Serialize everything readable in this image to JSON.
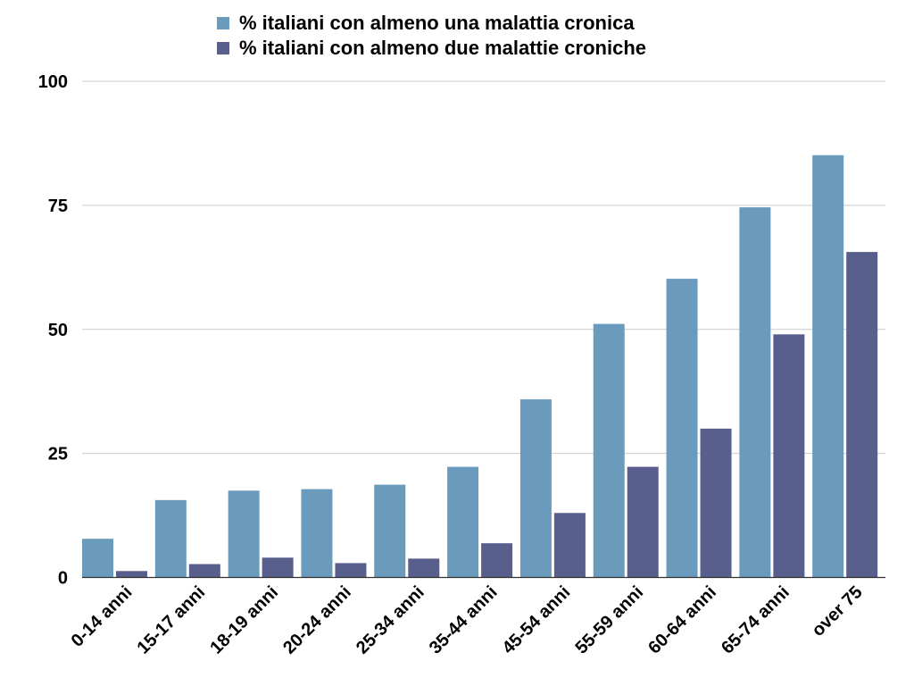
{
  "chart_data": {
    "type": "bar",
    "title": "",
    "xlabel": "",
    "ylabel": "",
    "categories": [
      "0-14 anni",
      "15-17 anni",
      "18-19 anni",
      "20-24 anni",
      "25-34 anni",
      "35-44 anni",
      "45-54 anni",
      "55-59 anni",
      "60-64 anni",
      "65-74 anni",
      "over 75"
    ],
    "series": [
      {
        "name": "% italiani con almeno una malattia cronica",
        "color": "#6a9bbd",
        "values": [
          7.8,
          15.6,
          17.5,
          17.8,
          18.7,
          22.3,
          35.9,
          51.1,
          60.2,
          74.6,
          85.1
        ]
      },
      {
        "name": "% italiani con almeno due malattie croniche",
        "color": "#595f8c",
        "values": [
          1.3,
          2.7,
          4.0,
          2.9,
          3.8,
          6.9,
          13.0,
          22.3,
          30.0,
          49.0,
          65.6
        ]
      }
    ],
    "ylim": [
      0,
      100
    ],
    "yticks": [
      0,
      25,
      50,
      75,
      100
    ],
    "grid": true,
    "legend_position": "top-center"
  }
}
